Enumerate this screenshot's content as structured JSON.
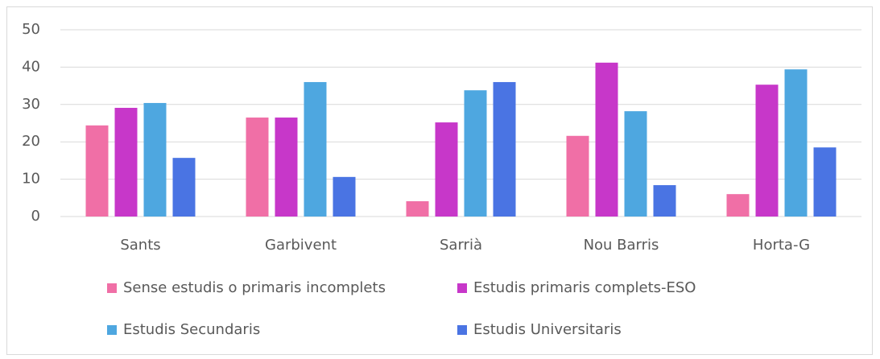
{
  "chart_data": {
    "type": "bar",
    "categories": [
      "Sants",
      "Garbivent",
      "Sarrià",
      "Nou Barris",
      "Horta-G"
    ],
    "series": [
      {
        "name": "Sense estudis o primaris incomplets",
        "color": "#f06fa6",
        "values": [
          24.4,
          26.5,
          4.1,
          21.6,
          6.0
        ]
      },
      {
        "name": "Estudis primaris complets-ESO",
        "color": "#c737c9",
        "values": [
          29.1,
          26.5,
          25.2,
          41.2,
          35.3
        ]
      },
      {
        "name": "Estudis Secundaris",
        "color": "#4ea7e0",
        "values": [
          30.4,
          36.0,
          33.8,
          28.2,
          39.4
        ]
      },
      {
        "name": "Estudis Universitaris",
        "color": "#4a74e3",
        "values": [
          15.7,
          10.6,
          36.0,
          8.4,
          18.5
        ]
      }
    ],
    "ylim": [
      0,
      50
    ],
    "yticks": [
      0,
      10,
      20,
      30,
      40,
      50
    ],
    "grid": true
  }
}
